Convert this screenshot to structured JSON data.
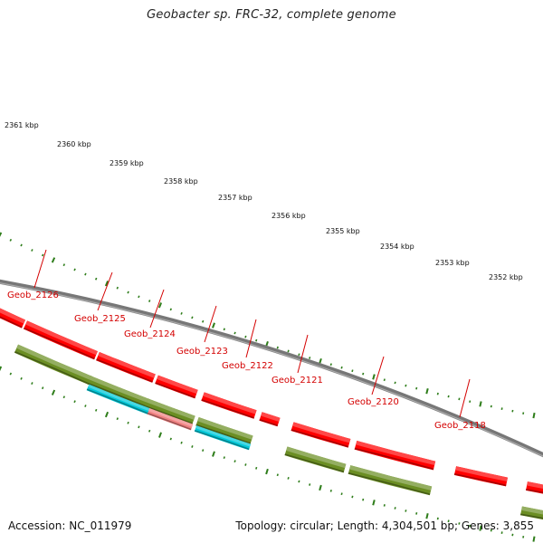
{
  "title": "Geobacter sp. FRC-32, complete genome",
  "footer": {
    "accession": "Accession: NC_011979",
    "summary": "Topology: circular; Length: 4,304,501 bp; Genes: 3,855"
  },
  "colors": {
    "forward_gene": "#ff0000",
    "reverse_gene": "#6b8e23",
    "rna_cyan": "#00c8d8",
    "pink_gene": "#f08080",
    "backbone": "#777777",
    "tick": "#2e7d1a",
    "label": "#d40000"
  },
  "scale_labels": [
    "2361 kbp",
    "2360 kbp",
    "2359 kbp",
    "2358 kbp",
    "2357 kbp",
    "2356 kbp",
    "2355 kbp",
    "2354 kbp",
    "2353 kbp",
    "2352 kbp"
  ],
  "gene_labels": [
    "Geob_2126",
    "Geob_2125",
    "Geob_2124",
    "Geob_2123",
    "Geob_2122",
    "Geob_2121",
    "Geob_2120",
    "Geob_2118"
  ]
}
